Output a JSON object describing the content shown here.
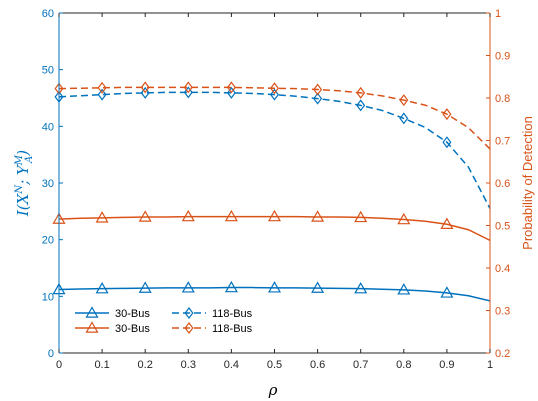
{
  "chart_data": {
    "type": "line",
    "xlabel": "ρ",
    "ylabel_left": "I(X^N; Y_A^M)",
    "ylabel_left_parts": {
      "main": "I(X",
      "sup1": "N",
      "mid": "; Y",
      "sup2": "M",
      "sub2": "A",
      "end": ")"
    },
    "ylabel_right": "Probability of Detection",
    "xlim": [
      0,
      1
    ],
    "ylim_left": [
      0,
      60
    ],
    "ylim_right": [
      0.2,
      1
    ],
    "x_ticks": [
      "0",
      "0.1",
      "0.2",
      "0.3",
      "0.4",
      "0.5",
      "0.6",
      "0.7",
      "0.8",
      "0.9",
      "1"
    ],
    "y_ticks_left": [
      "0",
      "10",
      "20",
      "30",
      "40",
      "50",
      "60"
    ],
    "y_ticks_right": [
      "0.2",
      "0.3",
      "0.4",
      "0.5",
      "0.6",
      "0.7",
      "0.8",
      "0.9",
      "1"
    ],
    "grid": false,
    "legend_position": "bottom-left",
    "colors": {
      "blue": "#0072BD",
      "orange": "#D95319",
      "axis": "#262626"
    },
    "series": [
      {
        "name": "30-Bus",
        "axis": "left",
        "color": "#0072BD",
        "dash": "solid",
        "marker": "triangle",
        "x": [
          0,
          0.05,
          0.1,
          0.15,
          0.2,
          0.25,
          0.3,
          0.35,
          0.4,
          0.45,
          0.5,
          0.55,
          0.6,
          0.65,
          0.7,
          0.75,
          0.8,
          0.85,
          0.9,
          0.95,
          1.0
        ],
        "y": [
          11.2,
          11.3,
          11.35,
          11.4,
          11.45,
          11.5,
          11.5,
          11.5,
          11.55,
          11.55,
          11.5,
          11.5,
          11.45,
          11.4,
          11.35,
          11.25,
          11.15,
          10.95,
          10.6,
          10.1,
          9.2
        ]
      },
      {
        "name": "118-Bus",
        "axis": "left",
        "color": "#0072BD",
        "dash": "dashed",
        "marker": "diamond",
        "x": [
          0,
          0.05,
          0.1,
          0.15,
          0.2,
          0.25,
          0.3,
          0.35,
          0.4,
          0.45,
          0.5,
          0.55,
          0.6,
          0.65,
          0.7,
          0.75,
          0.8,
          0.85,
          0.9,
          0.95,
          1.0
        ],
        "y": [
          45.2,
          45.4,
          45.6,
          45.8,
          45.9,
          46.0,
          46.0,
          46.0,
          45.9,
          45.8,
          45.6,
          45.3,
          44.9,
          44.4,
          43.7,
          42.8,
          41.4,
          39.8,
          37.2,
          32.8,
          25.5
        ]
      },
      {
        "name": "30-Bus",
        "axis": "right",
        "color": "#D95319",
        "dash": "solid",
        "marker": "triangle",
        "x": [
          0,
          0.05,
          0.1,
          0.15,
          0.2,
          0.25,
          0.3,
          0.35,
          0.4,
          0.45,
          0.5,
          0.55,
          0.6,
          0.65,
          0.7,
          0.75,
          0.8,
          0.85,
          0.9,
          0.95,
          1.0
        ],
        "y": [
          0.515,
          0.517,
          0.518,
          0.519,
          0.52,
          0.52,
          0.521,
          0.521,
          0.521,
          0.521,
          0.521,
          0.521,
          0.52,
          0.52,
          0.519,
          0.517,
          0.514,
          0.51,
          0.503,
          0.49,
          0.465
        ]
      },
      {
        "name": "118-Bus",
        "axis": "right",
        "color": "#D95319",
        "dash": "dashed",
        "marker": "diamond",
        "x": [
          0,
          0.05,
          0.1,
          0.15,
          0.2,
          0.25,
          0.3,
          0.35,
          0.4,
          0.45,
          0.5,
          0.55,
          0.6,
          0.65,
          0.7,
          0.75,
          0.8,
          0.85,
          0.9,
          0.95,
          1.0
        ],
        "y": [
          0.822,
          0.823,
          0.824,
          0.825,
          0.825,
          0.825,
          0.825,
          0.825,
          0.825,
          0.824,
          0.823,
          0.822,
          0.82,
          0.817,
          0.812,
          0.805,
          0.795,
          0.783,
          0.762,
          0.73,
          0.68
        ]
      }
    ],
    "markers_every": 2,
    "legend": [
      {
        "label": "30-Bus",
        "series": 0
      },
      {
        "label": "118-Bus",
        "series": 1
      },
      {
        "label": "30-Bus",
        "series": 2
      },
      {
        "label": "118-Bus",
        "series": 3
      }
    ]
  }
}
